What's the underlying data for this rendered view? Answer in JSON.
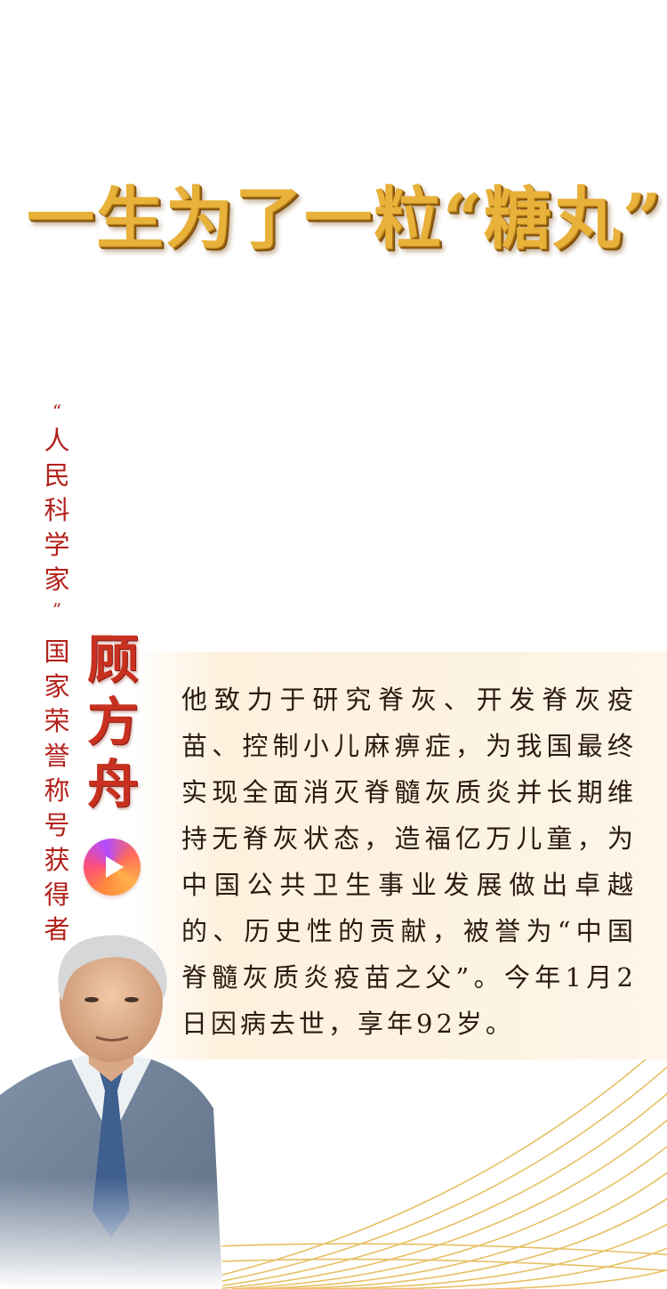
{
  "title": "一生为了一粒“糖丸”",
  "honorific": {
    "quote_open": "“",
    "chars": [
      "人",
      "民",
      "科",
      "学",
      "家"
    ],
    "quote_close": "”",
    "award_chars": [
      "国",
      "家",
      "荣",
      "誉",
      "称",
      "号",
      "获",
      "得",
      "者"
    ]
  },
  "name": {
    "chars": [
      "顾",
      "方",
      "舟"
    ]
  },
  "body_text": "他致力于研究脊灰、开发脊灰疫苗、控制小儿麻痹症，为我国最终实现全面消灭脊髓灰质炎并长期维持无脊灰状态，造福亿万儿童，为中国公共卫生事业发展做出卓越的、历史性的贡献，被誉为“中国脊髓灰质炎疫苗之父”。今年1月2日因病去世，享年92岁。",
  "colors": {
    "title_gold": "#e7b13a",
    "accent_red": "#b3211b",
    "panel_bg": "#fdf1de",
    "arc_gold": "#e2b64a"
  },
  "icons": {
    "play": "play-icon"
  }
}
